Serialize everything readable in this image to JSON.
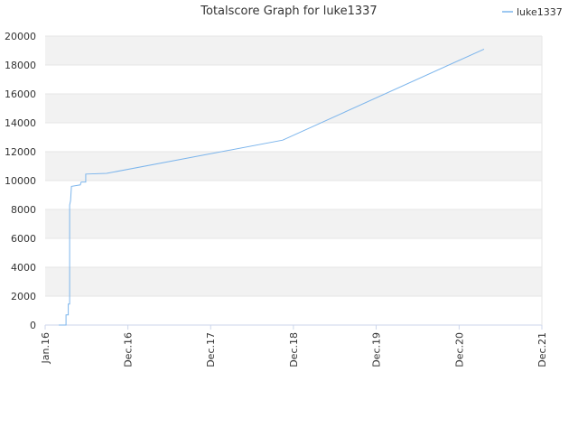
{
  "chart_data": {
    "type": "line",
    "title": "Totalscore Graph for luke1337",
    "x": [
      "2016-03-01",
      "2016-04-02",
      "2016-04-02",
      "2016-04-12",
      "2016-04-12",
      "2016-04-18",
      "2016-04-18",
      "2016-04-22",
      "2016-04-26",
      "2016-06-04",
      "2016-06-08",
      "2016-06-28",
      "2016-06-28",
      "2016-09-28",
      "2018-11-14",
      "2021-04-20"
    ],
    "series": [
      {
        "name": "luke1337",
        "color": "#7cb5ec",
        "values": [
          0,
          0,
          700,
          700,
          1450,
          1450,
          8300,
          8600,
          9600,
          9700,
          9900,
          9900,
          10450,
          10500,
          12800,
          19100
        ]
      }
    ],
    "xlim": [
      "2016-01-01",
      "2021-12-31"
    ],
    "xticks": [
      {
        "value": "2016-01-01",
        "label": "Jan.16"
      },
      {
        "value": "2016-12-31",
        "label": "Dec.16"
      },
      {
        "value": "2017-12-31",
        "label": "Dec.17"
      },
      {
        "value": "2018-12-31",
        "label": "Dec.18"
      },
      {
        "value": "2019-12-31",
        "label": "Dec.19"
      },
      {
        "value": "2020-12-31",
        "label": "Dec.20"
      },
      {
        "value": "2021-12-31",
        "label": "Dec.21"
      }
    ],
    "ylim": [
      0,
      20000
    ],
    "yticks": [
      0,
      2000,
      4000,
      6000,
      8000,
      10000,
      12000,
      14000,
      16000,
      18000,
      20000
    ],
    "grid": true,
    "legend": "top-right"
  }
}
